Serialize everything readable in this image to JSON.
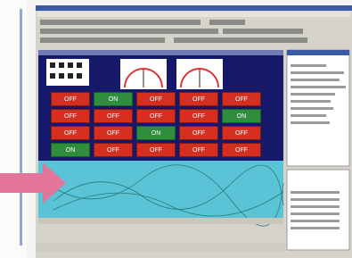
{
  "switch_grid": {
    "rows": [
      [
        "OFF",
        "ON",
        "OFF",
        "OFF",
        "OFF"
      ],
      [
        "OFF",
        "OFF",
        "OFF",
        "OFF",
        "ON"
      ],
      [
        "OFF",
        "OFF",
        "ON",
        "OFF",
        "OFF"
      ],
      [
        "ON",
        "OFF",
        "OFF",
        "OFF",
        "OFF"
      ]
    ],
    "on_label": "ON"
  }
}
